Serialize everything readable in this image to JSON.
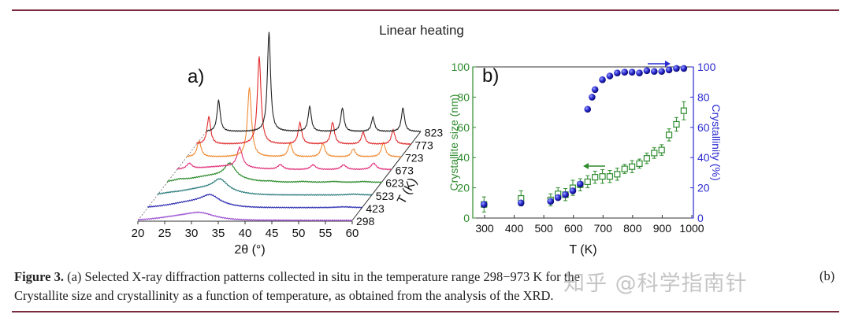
{
  "figure": {
    "title": "Linear heating",
    "caption_label": "Figure 3.",
    "caption_line1": "(a) Selected X-ray diffraction patterns collected in situ in the temperature range 298−973 K for the",
    "caption_line1_end": "(b)",
    "caption_line2": "Crystallite size and crystallinity as a function of temperature, as obtained from the analysis of the XRD.",
    "watermark": "知乎 @科学指南针",
    "rule_color": "#7a2b3d"
  },
  "chart_data": [
    {
      "type": "line",
      "panel_label": "a)",
      "xlabel": "2θ (°)",
      "zlabel": "T (K)",
      "xlim": [
        20,
        60
      ],
      "xticks": [
        "20",
        "25",
        "30",
        "35",
        "40",
        "45",
        "50",
        "55",
        "60"
      ],
      "peak_positions_2theta": [
        22.3,
        31.7,
        39.3,
        45.4,
        51.1,
        56.7
      ],
      "series": [
        {
          "name": "298",
          "color": "#9a4fd0",
          "peak_intensities": [
            0,
            6,
            0,
            0,
            0,
            0
          ],
          "hump": 5,
          "peak_width": 3.0
        },
        {
          "name": "423",
          "color": "#2a2ab0",
          "peak_intensities": [
            0,
            11,
            0,
            0,
            0,
            1
          ],
          "hump": 7,
          "peak_width": 2.0
        },
        {
          "name": "523",
          "color": "#2a7a7a",
          "peak_intensities": [
            1,
            14,
            0,
            0,
            0,
            1
          ],
          "hump": 8,
          "peak_width": 1.6
        },
        {
          "name": "623",
          "color": "#2a8a2a",
          "peak_intensities": [
            2,
            18,
            1,
            1,
            1,
            1
          ],
          "hump": 8,
          "peak_width": 1.2
        },
        {
          "name": "673",
          "color": "#e0307a",
          "peak_intensities": [
            7,
            25,
            6,
            6,
            6,
            8
          ],
          "hump": 4,
          "peak_width": 0.6
        },
        {
          "name": "723",
          "color": "#f08a30",
          "peak_intensities": [
            20,
            88,
            17,
            17,
            10,
            18
          ],
          "hump": 0,
          "peak_width": 0.45
        },
        {
          "name": "773",
          "color": "#e02a2a",
          "peak_intensities": [
            35,
            112,
            27,
            28,
            15,
            18
          ],
          "hump": 0,
          "peak_width": 0.4
        },
        {
          "name": "823",
          "color": "#222222",
          "peak_intensities": [
            40,
            127,
            32,
            30,
            18,
            30
          ],
          "hump": 0,
          "peak_width": 0.35
        }
      ]
    },
    {
      "type": "scatter",
      "panel_label": "b)",
      "xlabel": "T (K)",
      "ylabel": "Crystallite size (nm)",
      "y2label": "Crystallinity (%)",
      "xlim": [
        280,
        1000
      ],
      "ylim": [
        0,
        100
      ],
      "y2lim": [
        0,
        100
      ],
      "xticks": [
        "300",
        "400",
        "500",
        "600",
        "700",
        "800",
        "900",
        "1000"
      ],
      "yticks": [
        "0",
        "20",
        "40",
        "60",
        "80",
        "100"
      ],
      "y2ticks": [
        "0",
        "20",
        "40",
        "60",
        "80",
        "100"
      ],
      "size_color": "#2e8b2e",
      "crystallinity_color": "#2a2ad0",
      "size": {
        "x": [
          298,
          423,
          523,
          548,
          573,
          598,
          623,
          648,
          673,
          698,
          723,
          748,
          773,
          798,
          823,
          848,
          873,
          898,
          923,
          948,
          973
        ],
        "y": [
          9,
          13,
          12,
          16,
          15.5,
          20,
          22,
          24,
          27,
          27.5,
          27.5,
          29,
          32.5,
          34,
          36,
          39.5,
          43,
          45,
          55,
          62,
          71
        ],
        "err": [
          5,
          5,
          4,
          4,
          4,
          5,
          4,
          4,
          4,
          4.5,
          4,
          4,
          3,
          4,
          3,
          3.5,
          3.5,
          3.5,
          4,
          4.5,
          6
        ]
      },
      "crystallinity": {
        "x": [
          298,
          423,
          523,
          548,
          573,
          598,
          623,
          648,
          663,
          673,
          698,
          723,
          748,
          773,
          798,
          823,
          848,
          873,
          898,
          923,
          948,
          973
        ],
        "y": [
          9,
          10,
          11,
          13.5,
          15.5,
          18,
          22.5,
          72,
          80,
          85,
          91.5,
          94,
          96,
          96.5,
          96.5,
          96,
          97.5,
          97,
          97,
          98,
          99,
          99
        ]
      }
    }
  ]
}
